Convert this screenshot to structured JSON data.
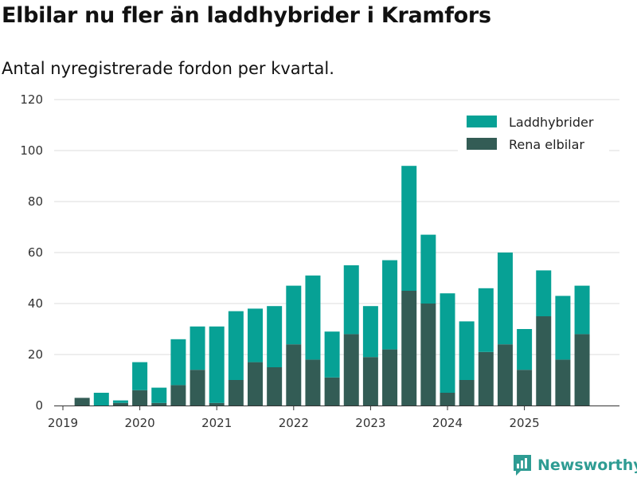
{
  "title": "Elbilar nu fler än laddhybrider i Kramfors",
  "subtitle": "Antal nyregistrerade fordon per kvartal.",
  "brand": "Newsworthy",
  "colors": {
    "laddhybrider": "#07a195",
    "rena_elbilar": "#335c55",
    "grid": "#dddddd",
    "axis": "#333333",
    "brand": "#2e9c93"
  },
  "chart_data": {
    "type": "bar",
    "stacked": true,
    "title": "Elbilar nu fler än laddhybrider i Kramfors",
    "subtitle": "Antal nyregistrerade fordon per kvartal.",
    "xlabel": "",
    "ylabel": "",
    "ylim": [
      0,
      120
    ],
    "yticks": [
      0,
      20,
      40,
      60,
      80,
      100,
      120
    ],
    "grid": true,
    "legend_position": "top-right",
    "categories": [
      "2019 Q1",
      "2019 Q2",
      "2019 Q3",
      "2019 Q4",
      "2020 Q1",
      "2020 Q2",
      "2020 Q3",
      "2020 Q4",
      "2021 Q1",
      "2021 Q2",
      "2021 Q3",
      "2021 Q4",
      "2022 Q1",
      "2022 Q2",
      "2022 Q3",
      "2022 Q4",
      "2023 Q1",
      "2023 Q2",
      "2023 Q3",
      "2023 Q4",
      "2024 Q1",
      "2024 Q2",
      "2024 Q3",
      "2024 Q4",
      "2025 Q1",
      "2025 Q2",
      "2025 Q3",
      "2025 Q4"
    ],
    "x_tick_labels": [
      {
        "label": "2019",
        "index": 0
      },
      {
        "label": "2020",
        "index": 4
      },
      {
        "label": "2021",
        "index": 8
      },
      {
        "label": "2022",
        "index": 12
      },
      {
        "label": "2023",
        "index": 16
      },
      {
        "label": "2024",
        "index": 20
      },
      {
        "label": "2025",
        "index": 24
      }
    ],
    "series": [
      {
        "name": "Rena elbilar",
        "color": "#335c55",
        "values": [
          0,
          3,
          0,
          1,
          6,
          1,
          8,
          14,
          1,
          10,
          17,
          15,
          24,
          18,
          11,
          28,
          19,
          22,
          45,
          40,
          5,
          10,
          21,
          24,
          14,
          35,
          18,
          28
        ]
      },
      {
        "name": "Laddhybrider",
        "color": "#07a195",
        "values": [
          0,
          0,
          5,
          1,
          11,
          6,
          18,
          17,
          30,
          27,
          21,
          24,
          23,
          33,
          18,
          27,
          20,
          35,
          49,
          27,
          39,
          23,
          25,
          36,
          16,
          18,
          25,
          19
        ]
      }
    ],
    "legend": [
      "Laddhybrider",
      "Rena elbilar"
    ]
  }
}
